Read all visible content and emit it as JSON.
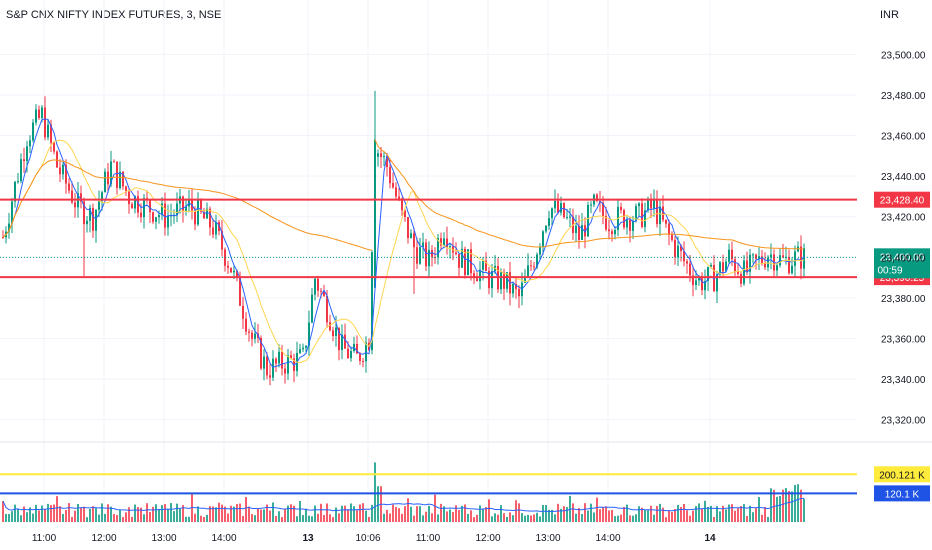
{
  "title": "S&P CNX NIFTY INDEX FUTURES, 3, NSE",
  "currency": "INR",
  "colors": {
    "up": "#089981",
    "down": "#f23645",
    "ma_fast": "#2962ff",
    "ma_mid": "#ffd54f",
    "ma_slow": "#f7931a",
    "level_line": "#f23645",
    "last_price_line": "#089981",
    "vol_avg_line": "#2962ff",
    "vol_level_line": "#ffeb3b",
    "vol_level2_line": "#1e53e5"
  },
  "chart_data": {
    "type": "candlestick",
    "y_ticks": [
      "23,500.00",
      "23,480.00",
      "23,460.00",
      "23,440.00",
      "23,420.00",
      "23,400.00",
      "23,380.00",
      "23,360.00",
      "23,340.00",
      "23,320.00"
    ],
    "y_tick_values": [
      23500,
      23480,
      23460,
      23440,
      23420,
      23400,
      23380,
      23360,
      23340,
      23320
    ],
    "ylim": [
      23310,
      23512
    ],
    "x_ticks": [
      "11:00",
      "12:00",
      "13:00",
      "14:00",
      "13",
      "10:06",
      "11:00",
      "12:00",
      "13:00",
      "14:00",
      "14"
    ],
    "bold_x_ticks": [
      "13",
      "14"
    ],
    "x_tick_index": [
      14,
      34,
      54,
      74,
      102,
      122,
      142,
      162,
      182,
      202,
      236
    ],
    "horizontal_levels": [
      {
        "label": "23,428.40",
        "value": 23428.4
      },
      {
        "label": "23,390.25",
        "value": 23390.25
      }
    ],
    "last_price": {
      "label": "23,400.00",
      "value": 23400.0,
      "countdown": "00:59"
    },
    "volume_levels": [
      {
        "label": "200.121 K",
        "value": 200.121
      },
      {
        "label": "120.1 K",
        "value": 120.1
      }
    ],
    "volume_ylim": [
      0,
      260
    ]
  }
}
